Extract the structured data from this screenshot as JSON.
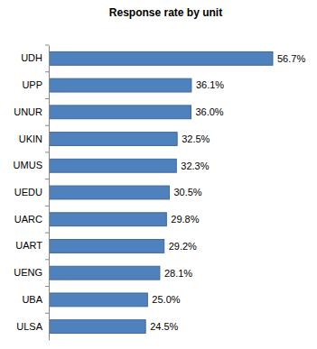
{
  "chart_data": {
    "type": "bar",
    "title": "Response rate by unit",
    "orientation": "horizontal",
    "categories": [
      "UDH",
      "UPP",
      "UNUR",
      "UKIN",
      "UMUS",
      "UEDU",
      "UARC",
      "UART",
      "UENG",
      "UBA",
      "ULSA"
    ],
    "values": [
      56.7,
      36.1,
      36.0,
      32.5,
      32.3,
      30.5,
      29.8,
      29.2,
      28.1,
      25.0,
      24.5
    ],
    "value_labels": [
      "56.7%",
      "36.1%",
      "36.0%",
      "32.5%",
      "32.3%",
      "30.5%",
      "29.8%",
      "29.2%",
      "28.1%",
      "25.0%",
      "24.5%"
    ],
    "color": "#4f81bd",
    "data_labels": true,
    "grid": false
  }
}
